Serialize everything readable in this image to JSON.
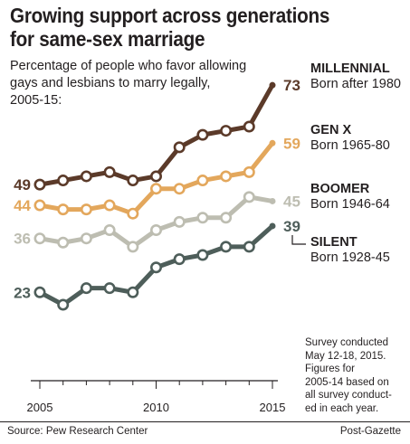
{
  "title_line1": "Growing support across generations",
  "title_line2": "for same-sex marriage",
  "subtitle_line1": "Percentage of people who favor allowing",
  "subtitle_line2": "gays and lesbians to marry legally,",
  "subtitle_line3": "2005-15:",
  "note_lines": [
    "Survey conducted",
    "May 12-18, 2015.",
    "Figures for",
    "2005-14 based on",
    "all survey conduct-",
    "ed in each year."
  ],
  "source": "Source: Pew Research Center",
  "credit": "Post-Gazette",
  "chart_data": {
    "type": "line",
    "x": [
      2005,
      2006,
      2007,
      2008,
      2009,
      2010,
      2011,
      2012,
      2013,
      2014,
      2015
    ],
    "xticks": [
      2005,
      2010,
      2015
    ],
    "xlim": [
      2005,
      2015.5
    ],
    "ylim": [
      20,
      75
    ],
    "grid": false,
    "series": [
      {
        "name": "MILLENNIAL",
        "sub": "Born after 1980",
        "color": "#5b3a29",
        "start_label": "49",
        "end_label": "73",
        "values": [
          49,
          50,
          51,
          52,
          50,
          51,
          58,
          61,
          62,
          63,
          73
        ]
      },
      {
        "name": "GEN X",
        "sub": "Born 1965-80",
        "color": "#e3a75c",
        "start_label": "44",
        "end_label": "59",
        "values": [
          44,
          43,
          43,
          44,
          42,
          48,
          48,
          50,
          51,
          52,
          59
        ]
      },
      {
        "name": "BOOMER",
        "sub": "Born 1946-64",
        "color": "#bdbdb1",
        "start_label": "36",
        "end_label": "45",
        "values": [
          36,
          35,
          36,
          38,
          34,
          38,
          40,
          41,
          41,
          46,
          45
        ]
      },
      {
        "name": "SILENT",
        "sub": "Born 1928-45",
        "color": "#4e5e5a",
        "start_label": "23",
        "end_label": "39",
        "values": [
          23,
          20,
          24,
          24,
          23,
          29,
          31,
          32,
          34,
          34,
          39
        ]
      }
    ]
  }
}
